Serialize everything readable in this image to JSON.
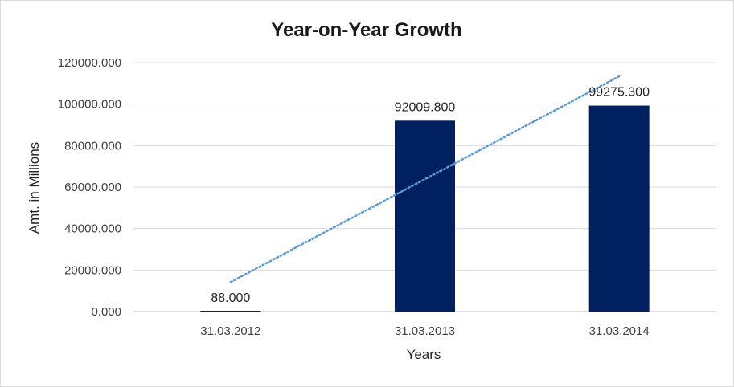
{
  "chart_data": {
    "type": "bar",
    "title": "Year-on-Year Growth",
    "xlabel": "Years",
    "ylabel": "Amt. in Millions",
    "categories": [
      "31.03.2012",
      "31.03.2013",
      "31.03.2014"
    ],
    "values": [
      88.0,
      92009.8,
      99275.3
    ],
    "data_labels": [
      "88.000",
      "92009.800",
      "99275.300"
    ],
    "ylim": [
      0,
      120000
    ],
    "y_ticks": [
      0,
      20000,
      40000,
      60000,
      80000,
      100000,
      120000
    ],
    "y_tick_labels": [
      "0.000",
      "20000.000",
      "40000.000",
      "60000.000",
      "80000.000",
      "100000.000",
      "120000.000"
    ],
    "grid": true,
    "legend": "none",
    "trendline": {
      "type": "linear",
      "style": "dotted"
    },
    "colors": {
      "bar": "#002060",
      "trendline": "#5b9bd5",
      "grid": "#d9d9d9"
    }
  }
}
